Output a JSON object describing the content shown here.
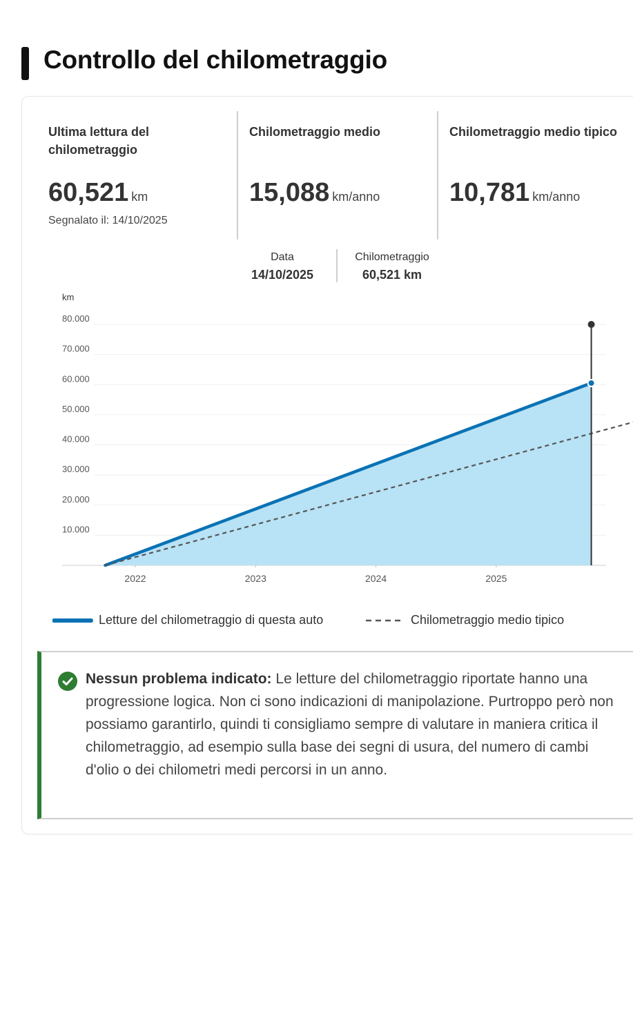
{
  "page": {
    "title": "Controllo del chilometraggio"
  },
  "stats": [
    {
      "label": "Ultima lettura del chilometraggio",
      "value": "60,521",
      "unit": "km",
      "sub": "Segnalato il: 14/10/2025"
    },
    {
      "label": "Chilometraggio medio",
      "value": "15,088",
      "unit": "km/anno"
    },
    {
      "label": "Chilometraggio medio tipico",
      "value": "10,781",
      "unit": "km/anno"
    }
  ],
  "tooltip": {
    "date_label": "Data",
    "date_value": "14/10/2025",
    "km_label": "Chilometraggio",
    "km_value": "60,521 km"
  },
  "chart_data": {
    "type": "area",
    "ylabel": "km",
    "ylim": [
      0,
      80000
    ],
    "y_ticks": [
      "10.000",
      "20.000",
      "30.000",
      "40.000",
      "50.000",
      "60.000",
      "70.000",
      "80.000"
    ],
    "x_ticks": [
      "2022",
      "2023",
      "2024",
      "2025"
    ],
    "series": [
      {
        "name": "Letture del chilometraggio di questa auto",
        "x": [
          2021.75,
          2025.79
        ],
        "y": [
          0,
          60521
        ],
        "color": "#0a72b5"
      },
      {
        "name": "Chilometraggio medio tipico",
        "x": [
          2021.75,
          2026.18
        ],
        "y": [
          0,
          48000
        ],
        "color": "#555555"
      }
    ],
    "highlight": {
      "x": 2025.79,
      "y": 60521
    }
  },
  "legend": {
    "series1": "Letture del chilometraggio di questa auto",
    "series2": "Chilometraggio medio tipico"
  },
  "alert": {
    "status": "success",
    "heading": "Nessun problema indicato:",
    "text": "Le letture del chilometraggio riportate hanno una progressione logica. Non ci sono indicazioni di manipolazione. Purtroppo però non possiamo garantirlo, quindi ti consigliamo sempre di valutare in maniera critica il chilometraggio, ad esempio sulla base dei segni di usura, del numero di cambi d'olio o dei chilometri medi percorsi in un anno."
  },
  "colors": {
    "accent": "#0a72b5",
    "area_fill": "#b8e2f5",
    "success": "#2e7d32"
  },
  "icons": {
    "alert": "check-circle-icon"
  }
}
